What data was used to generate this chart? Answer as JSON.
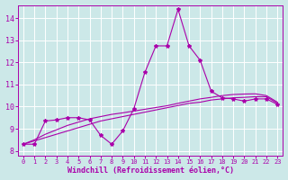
{
  "xlabel": "Windchill (Refroidissement éolien,°C)",
  "background_color": "#cce8e8",
  "grid_color": "#aadddd",
  "line_color": "#aa00aa",
  "xlim": [
    -0.5,
    23.5
  ],
  "ylim": [
    7.8,
    14.6
  ],
  "yticks": [
    8,
    9,
    10,
    11,
    12,
    13,
    14
  ],
  "xticks": [
    0,
    1,
    2,
    3,
    4,
    5,
    6,
    7,
    8,
    9,
    10,
    11,
    12,
    13,
    14,
    15,
    16,
    17,
    18,
    19,
    20,
    21,
    22,
    23
  ],
  "line1_x": [
    0,
    1,
    2,
    3,
    4,
    5,
    6,
    7,
    8,
    9,
    10,
    11,
    12,
    13,
    14,
    15,
    16,
    17,
    18,
    19,
    20,
    21,
    22,
    23
  ],
  "line1_y": [
    8.3,
    8.3,
    9.35,
    9.4,
    9.5,
    9.5,
    9.4,
    8.7,
    8.3,
    8.9,
    9.9,
    11.55,
    12.75,
    12.75,
    14.4,
    12.75,
    12.1,
    10.7,
    10.4,
    10.35,
    10.25,
    10.35,
    10.35,
    10.1
  ],
  "line2_x": [
    0,
    1,
    2,
    3,
    4,
    5,
    6,
    7,
    8,
    9,
    10,
    11,
    12,
    13,
    14,
    15,
    16,
    17,
    18,
    19,
    20,
    21,
    22,
    23
  ],
  "line2_y": [
    8.3,
    8.45,
    8.6,
    8.75,
    8.9,
    9.05,
    9.2,
    9.35,
    9.45,
    9.55,
    9.65,
    9.75,
    9.85,
    9.95,
    10.05,
    10.15,
    10.2,
    10.3,
    10.35,
    10.4,
    10.42,
    10.45,
    10.45,
    10.15
  ],
  "line3_x": [
    0,
    1,
    2,
    3,
    4,
    5,
    6,
    7,
    8,
    9,
    10,
    11,
    12,
    13,
    14,
    15,
    16,
    17,
    18,
    19,
    20,
    21,
    22,
    23
  ],
  "line3_y": [
    8.3,
    8.5,
    8.75,
    8.95,
    9.15,
    9.3,
    9.45,
    9.55,
    9.65,
    9.72,
    9.8,
    9.88,
    9.96,
    10.04,
    10.15,
    10.25,
    10.35,
    10.42,
    10.5,
    10.55,
    10.57,
    10.58,
    10.5,
    10.2
  ]
}
